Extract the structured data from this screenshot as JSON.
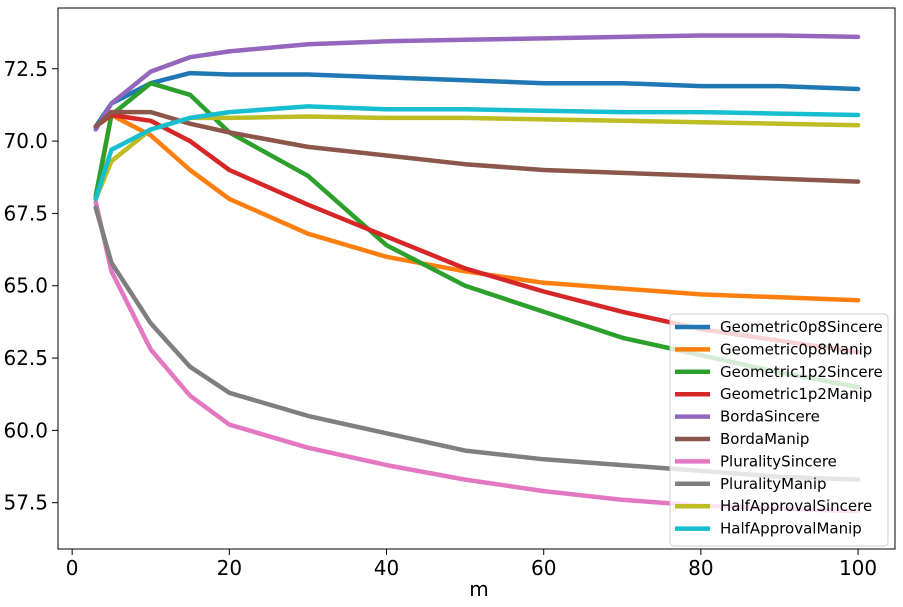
{
  "chart_data": {
    "type": "line",
    "title": "",
    "xlabel": "m",
    "ylabel": "",
    "xlim": [
      -1.8,
      104.7
    ],
    "ylim": [
      55.9,
      74.6
    ],
    "xticks": [
      0,
      20,
      40,
      60,
      80,
      100
    ],
    "yticks": [
      57.5,
      60.0,
      62.5,
      65.0,
      67.5,
      70.0,
      72.5
    ],
    "grid": false,
    "legend_position": "lower-right",
    "x": [
      3,
      5,
      10,
      15,
      20,
      30,
      40,
      50,
      60,
      70,
      80,
      90,
      100
    ],
    "series": [
      {
        "name": "Geometric0p8Sincere",
        "color": "#1f77b4",
        "values": [
          70.5,
          71.3,
          72.0,
          72.35,
          72.3,
          72.3,
          72.2,
          72.1,
          72.0,
          72.0,
          71.9,
          71.9,
          71.8
        ]
      },
      {
        "name": "Geometric0p8Manip",
        "color": "#ff7f0e",
        "values": [
          68.0,
          70.9,
          70.2,
          69.0,
          68.0,
          66.8,
          66.0,
          65.5,
          65.1,
          64.9,
          64.7,
          64.6,
          64.5
        ]
      },
      {
        "name": "Geometric1p2Sincere",
        "color": "#2ca02c",
        "values": [
          68.1,
          70.9,
          72.0,
          71.6,
          70.3,
          68.8,
          66.4,
          65.0,
          64.1,
          63.2,
          62.6,
          62.0,
          61.5
        ]
      },
      {
        "name": "Geometric1p2Manip",
        "color": "#d62728",
        "values": [
          70.5,
          70.9,
          70.7,
          70.0,
          69.0,
          67.8,
          66.7,
          65.6,
          64.8,
          64.1,
          63.5,
          63.1,
          62.7
        ]
      },
      {
        "name": "BordaSincere",
        "color": "#9467bd",
        "values": [
          70.4,
          71.3,
          72.4,
          72.9,
          73.1,
          73.35,
          73.45,
          73.5,
          73.55,
          73.6,
          73.65,
          73.65,
          73.6
        ]
      },
      {
        "name": "BordaManip",
        "color": "#8c564b",
        "values": [
          70.5,
          71.0,
          71.0,
          70.6,
          70.3,
          69.8,
          69.5,
          69.2,
          69.0,
          68.9,
          68.8,
          68.7,
          68.6
        ]
      },
      {
        "name": "PluralitySincere",
        "color": "#e377c2",
        "values": [
          67.9,
          65.5,
          62.8,
          61.2,
          60.2,
          59.4,
          58.8,
          58.3,
          57.9,
          57.6,
          57.4,
          57.3,
          57.2
        ]
      },
      {
        "name": "PluralityManip",
        "color": "#7f7f7f",
        "values": [
          67.7,
          65.8,
          63.7,
          62.2,
          61.3,
          60.5,
          59.9,
          59.3,
          59.0,
          58.8,
          58.6,
          58.4,
          58.3
        ]
      },
      {
        "name": "HalfApprovalSincere",
        "color": "#bcbd22",
        "values": [
          68.0,
          69.3,
          70.4,
          70.8,
          70.8,
          70.85,
          70.8,
          70.8,
          70.75,
          70.7,
          70.65,
          70.6,
          70.55
        ]
      },
      {
        "name": "HalfApprovalManip",
        "color": "#17becf",
        "values": [
          68.0,
          69.7,
          70.4,
          70.8,
          71.0,
          71.2,
          71.1,
          71.1,
          71.05,
          71.0,
          71.0,
          70.95,
          70.9
        ]
      }
    ]
  }
}
